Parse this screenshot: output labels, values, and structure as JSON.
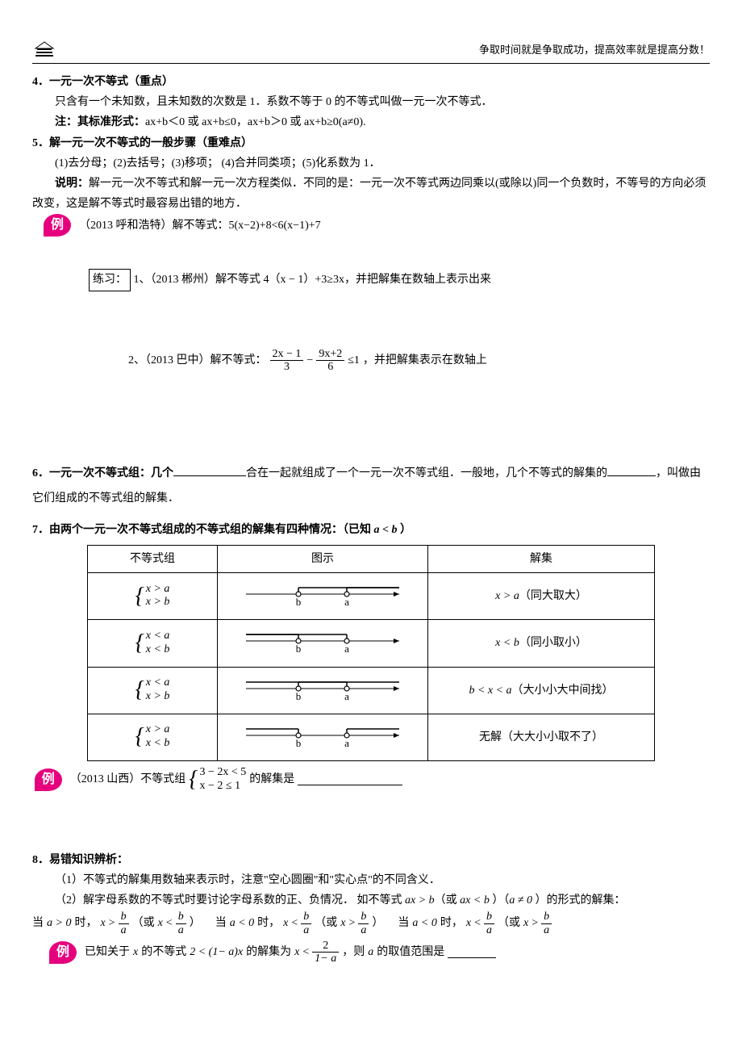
{
  "header": {
    "slogan": "争取时间就是争取成功，提高效率就是提高分数！"
  },
  "sec4": {
    "title": "4．一元一次不等式（重点）",
    "body": "只含有一个未知数，且未知数的次数是 1．系数不等于 0 的不等式叫做一元一次不等式．",
    "note_label": "注：其标准形式：",
    "note_body": "ax+b＜0 或 ax+b≤0，ax+b＞0 或 ax+b≥0(a≠0)."
  },
  "sec5": {
    "title": "5．解一元一次不等式的一般步骤（重难点）",
    "steps": "(1)去分母；(2)去括号；(3)移项；  (4)合并同类项；(5)化系数为 1．",
    "explain_label": "说明：",
    "explain": "解一元一次不等式和解一元一次方程类似．不同的是：一元一次不等式两边同乘以(或除以)同一个负数时，不等号的方向必须改变，这是解不等式时最容易出错的地方．",
    "example_label": "例",
    "example_text": "（2013 呼和浩特）解不等式：5(x−2)+8<6(x−1)+7",
    "practice_label": "练习：",
    "p1": "1、（2013 郴州）解不等式 4（x − 1）+3≥3x，并把解集在数轴上表示出来",
    "p2_prefix": "2、（2013 巴中）解不等式：",
    "p2_frac1_num": "2x − 1",
    "p2_frac1_den": "3",
    "p2_minus": " − ",
    "p2_frac2_num": "9x+2",
    "p2_frac2_den": "6",
    "p2_le": "≤1",
    "p2_suffix": "，并把解集表示在数轴上"
  },
  "sec6": {
    "prefix": "6．一元一次不等式组：几个",
    "mid": "合在一起就组成了一个一元一次不等式组．一般地，几个不等式的解集的",
    "suffix": "，叫做由它们组成的不等式组的解集．"
  },
  "sec7": {
    "title_prefix": "7．由两个一元一次不等式组成的不等式组的解集有四种情况：（已知 ",
    "title_cond": "a < b",
    "title_suffix": " ）",
    "headers": [
      "不等式组",
      "图示",
      "解集"
    ],
    "rows": [
      {
        "l1": "x > a",
        "l2": "x > b",
        "sol_math": "x > a",
        "sol_note": "（同大取大）",
        "open_b": true,
        "open_a": true,
        "dir_b": "right",
        "dir_a": "right"
      },
      {
        "l1": "x < a",
        "l2": "x < b",
        "sol_math": "x < b",
        "sol_note": "（同小取小）",
        "open_b": true,
        "open_a": true,
        "dir_b": "left",
        "dir_a": "left"
      },
      {
        "l1": "x < a",
        "l2": "x > b",
        "sol_math": "b < x < a",
        "sol_note": "（大小小大中间找）",
        "open_b": true,
        "open_a": true,
        "dir_b": "right",
        "dir_a": "left"
      },
      {
        "l1": "x > a",
        "l2": "x < b",
        "sol_math": "",
        "sol_note": "无解（大大小小取不了）",
        "open_b": true,
        "open_a": true,
        "dir_b": "left",
        "dir_a": "right"
      }
    ],
    "example_label": "例",
    "ex_prefix": "（2013 山西）不等式组",
    "ex_l1": "3 − 2x < 5",
    "ex_l2": "x − 2 ≤ 1",
    "ex_suffix": "的解集是"
  },
  "sec8": {
    "title": "8．易错知识辨析：",
    "p1": "（1）不等式的解集用数轴来表示时，注意\"空心圆圈\"和\"实心点\"的不同含义．",
    "p2_prefix": "（2）解字母系数的不等式时要讨论字母系数的正、负情况．  如不等式 ",
    "p2_m1": "ax > b",
    "p2_or": "（或 ",
    "p2_m2": "ax < b",
    "p2_close": " ）（",
    "p2_m3": "a ≠ 0",
    "p2_end": " ）的形式的解集：",
    "line_a_pos_prefix": "当 ",
    "line_a_pos_cond": "a > 0",
    "line_when": " 时，",
    "gt": " > ",
    "lt": " < ",
    "x": "x",
    "b": "b",
    "a": "a",
    "or_open": "（或 ",
    "close_paren": "）",
    "a_neg": "a < 0",
    "example_label": "例",
    "ex_prefix": "已知关于 ",
    "ex_x": "x",
    "ex_mid1": " 的不等式 ",
    "ex_ineq": "2 < (1− a)x",
    "ex_mid2": " 的解集为 ",
    "ex_frac_num": "2",
    "ex_frac_den": "1− a",
    "ex_suffix": " ，则 ",
    "ex_a": "a",
    "ex_end": " 的取值范围是"
  }
}
